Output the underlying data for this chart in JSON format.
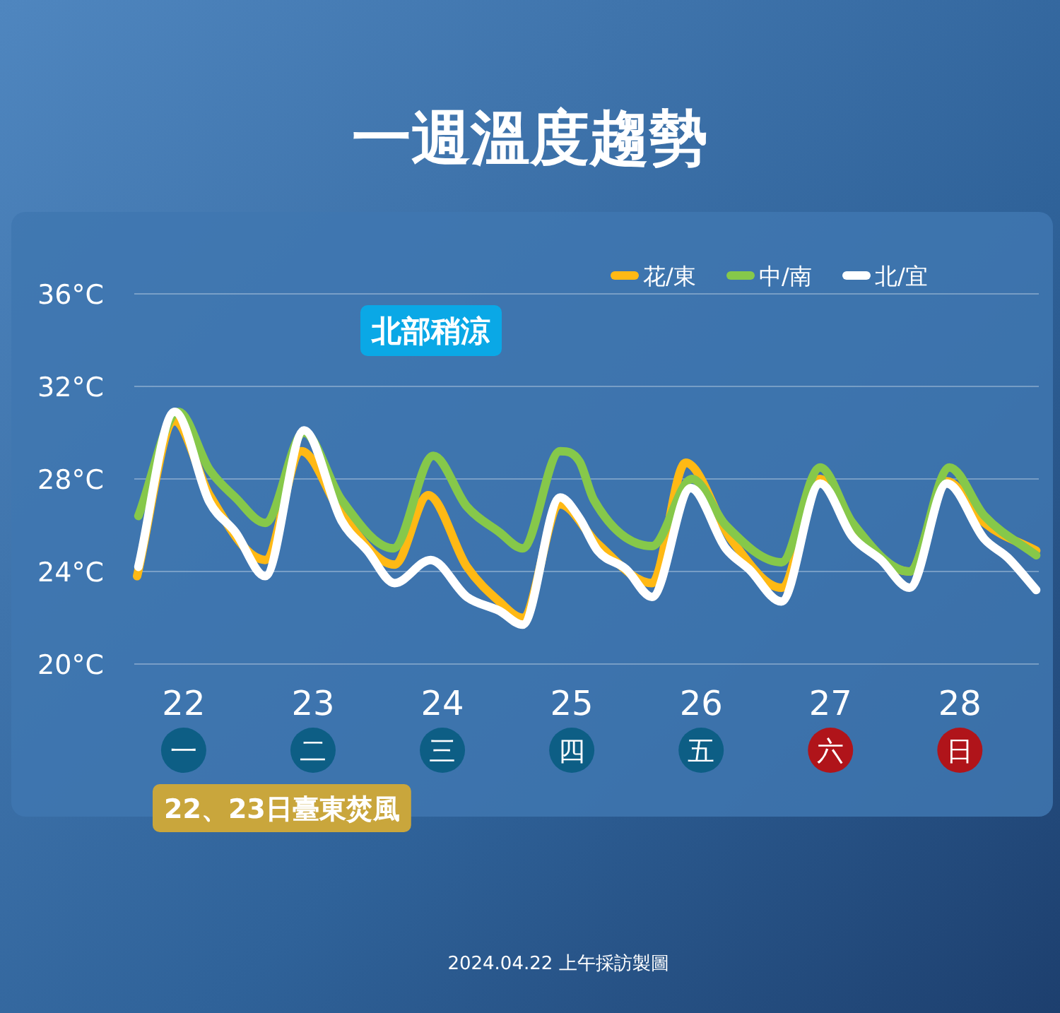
{
  "chart_data": {
    "type": "line",
    "title": "一週溫度趨勢",
    "xlim": [
      21.64,
      28.61
    ],
    "xticks": [
      {
        "value": 22,
        "label": "22\n一"
      },
      {
        "value": 23,
        "label": "23\n二"
      },
      {
        "value": 24,
        "label": "24\n三"
      },
      {
        "value": 25,
        "label": "25\n四"
      },
      {
        "value": 26,
        "label": "26\n五"
      },
      {
        "value": 27,
        "label": "27\n六"
      },
      {
        "value": 28,
        "label": "28\n日"
      }
    ],
    "ylim": [
      20,
      36
    ],
    "yticks": [
      {
        "value": 20,
        "label": "20°C"
      },
      {
        "value": 24,
        "label": "24°C"
      },
      {
        "value": 28,
        "label": "28°C"
      },
      {
        "value": 32,
        "label": "32°C"
      },
      {
        "value": 36,
        "label": "36°C"
      }
    ],
    "grid": "y",
    "legend": "top right",
    "line_style": "solid",
    "marker": "none",
    "series": [
      {
        "name": "花/東",
        "color": "#ffb914",
        "x": [
          21.64,
          21.93,
          22.2,
          22.63,
          22.91,
          23.22,
          23.63,
          23.89,
          24.19,
          24.44,
          24.62,
          24.91,
          25.2,
          25.62,
          25.88,
          26.23,
          26.62,
          26.92,
          27.17,
          27.61,
          27.9,
          28.19,
          28.59
        ],
        "values": [
          23.8,
          30.5,
          27.3,
          24.5,
          29.2,
          26.5,
          24.3,
          27.3,
          24.2,
          22.7,
          22.0,
          26.9,
          25.2,
          23.5,
          28.7,
          25.4,
          23.3,
          28.0,
          25.8,
          24.0,
          27.9,
          26.1,
          24.9
        ]
      },
      {
        "name": "中/南",
        "color": "#86c84a",
        "x": [
          21.65,
          21.96,
          22.2,
          22.4,
          22.63,
          22.93,
          23.22,
          23.62,
          23.93,
          24.19,
          24.44,
          24.62,
          24.91,
          25.06,
          25.17,
          25.62,
          25.93,
          26.19,
          26.62,
          26.92,
          27.17,
          27.61,
          27.92,
          28.19,
          28.59
        ],
        "values": [
          26.4,
          30.9,
          28.4,
          27.2,
          26.1,
          30.0,
          27.1,
          25.0,
          29.0,
          26.8,
          25.7,
          25.0,
          29.2,
          28.75,
          27.1,
          25.1,
          28.0,
          26.0,
          24.4,
          28.5,
          26.1,
          24.0,
          28.5,
          26.4,
          24.7
        ]
      },
      {
        "name": "北/宜",
        "color": "#ffffff",
        "x": [
          21.65,
          21.93,
          22.2,
          22.4,
          22.63,
          22.93,
          23.22,
          23.42,
          23.63,
          23.91,
          24.19,
          24.44,
          24.62,
          24.91,
          25.06,
          25.2,
          25.42,
          25.62,
          25.92,
          26.19,
          26.37,
          26.62,
          26.92,
          27.17,
          27.39,
          27.61,
          27.9,
          28.19,
          28.37,
          28.59
        ],
        "values": [
          24.2,
          30.9,
          27.0,
          25.7,
          23.8,
          30.1,
          26.2,
          24.9,
          23.5,
          24.5,
          22.9,
          22.3,
          21.7,
          27.2,
          26.3,
          24.9,
          24.1,
          22.9,
          27.6,
          25.0,
          24.1,
          22.7,
          27.8,
          25.5,
          24.5,
          23.3,
          27.8,
          25.4,
          24.6,
          23.2
        ]
      }
    ],
    "annotations": [
      "北部稍涼",
      "22、23日臺東焚風",
      "2024.04.22 上午採訪製圖"
    ]
  }
}
